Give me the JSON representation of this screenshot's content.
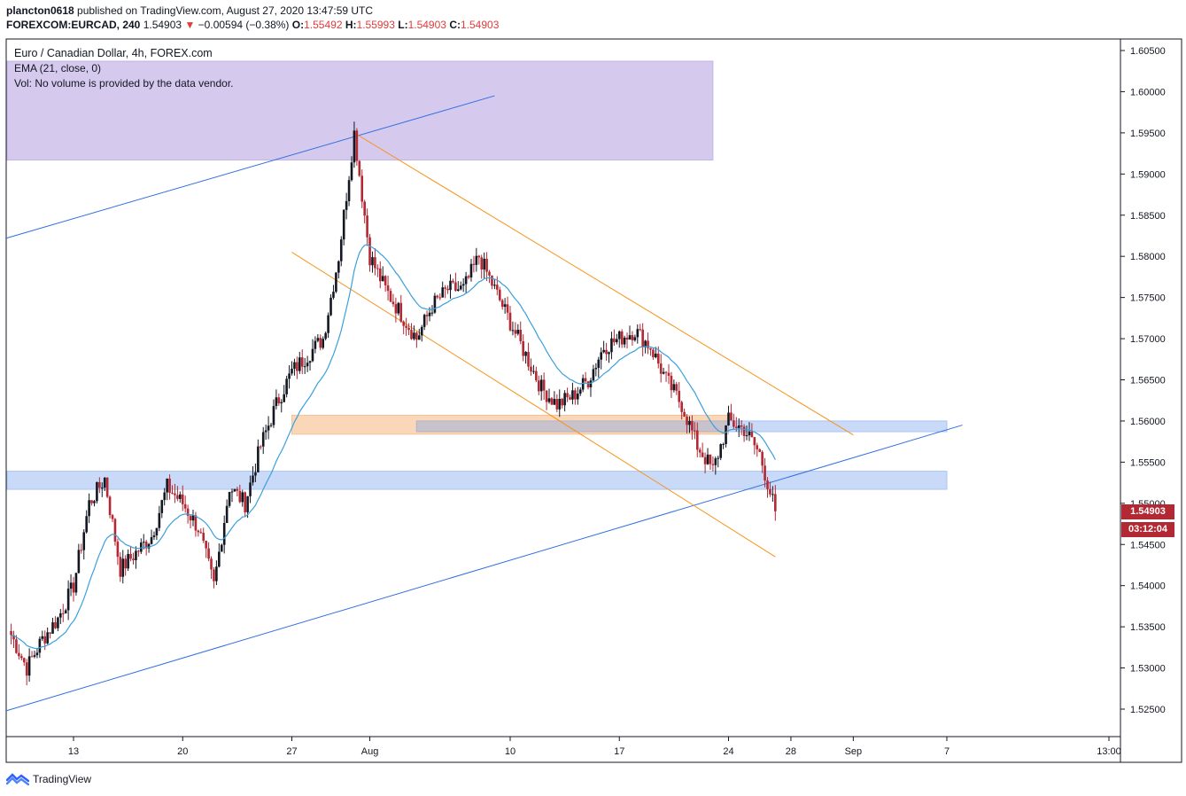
{
  "header": {
    "user": "plancton0618",
    "published": " published on TradingView.com, August 27, 2020 13:47:59 UTC",
    "symbol": "FOREXCOM:EURCAD, 240",
    "last": "1.54903",
    "change_arrow": "▼",
    "change": "−0.00594 (−0.38%)",
    "o_label": "O:",
    "o": "1.55492",
    "h_label": "H:",
    "h": "1.55993",
    "l_label": "L:",
    "l": "1.54903",
    "c_label": "C:",
    "c": "1.54903"
  },
  "legend": {
    "title": "Euro / Canadian Dollar, 4h, FOREX.com",
    "ema": "EMA (21, close, 0)",
    "vol": "Vol: No volume is provided by the data vendor."
  },
  "price_tag": {
    "price": "1.54903",
    "countdown": "03:12:04"
  },
  "brand": {
    "name": "TradingView",
    "icon": "tradingview-logo-icon"
  },
  "colors": {
    "up": "#131722",
    "down": "#b22833",
    "ema": "#3aa0dc",
    "trend_blue": "#2f6fe0",
    "trend_orange": "#f7931a",
    "zone_purple": "#d5c9ee",
    "zone_blue": "#c9daf8",
    "zone_orange": "#f9d7b8"
  },
  "chart_data": {
    "type": "candlestick",
    "title": "Euro / Canadian Dollar, 4h, FOREX.com",
    "y_ticks": [
      "1.60500",
      "1.60000",
      "1.59500",
      "1.59000",
      "1.58500",
      "1.58000",
      "1.57500",
      "1.57000",
      "1.56500",
      "1.56000",
      "1.55500",
      "1.55000",
      "1.54500",
      "1.54000",
      "1.53500",
      "1.53000",
      "1.52500"
    ],
    "x_ticks": [
      "13",
      "20",
      "27",
      "Aug",
      "10",
      "17",
      "24",
      "28",
      "Sep",
      "7",
      "13:00"
    ],
    "ylim": [
      1.5205,
      1.6085
    ],
    "grid": false,
    "close_path": [
      [
        "Jul 9",
        1.534
      ],
      [
        "Jul 10",
        1.53
      ],
      [
        "Jul 11",
        1.5335
      ],
      [
        "Jul 12",
        1.536
      ],
      [
        "Jul 13",
        1.54
      ],
      [
        "Jul 14",
        1.55
      ],
      [
        "Jul 15",
        1.553
      ],
      [
        "Jul 16",
        1.542
      ],
      [
        "Jul 17",
        1.544
      ],
      [
        "Jul 18",
        1.546
      ],
      [
        "Jul 19",
        1.552
      ],
      [
        "Jul 20",
        1.55
      ],
      [
        "Jul 21",
        1.547
      ],
      [
        "Jul 22",
        1.54
      ],
      [
        "Jul 23",
        1.552
      ],
      [
        "Jul 24",
        1.55
      ],
      [
        "Jul 25",
        1.557
      ],
      [
        "Jul 26",
        1.562
      ],
      [
        "Jul 27",
        1.566
      ],
      [
        "Jul 28",
        1.568
      ],
      [
        "Jul 29",
        1.57
      ],
      [
        "Jul 30",
        1.58
      ],
      [
        "Jul 31",
        1.595
      ],
      [
        "Aug 1",
        1.58
      ],
      [
        "Aug 2",
        1.576
      ],
      [
        "Aug 3",
        1.573
      ],
      [
        "Aug 4",
        1.57
      ],
      [
        "Aug 5",
        1.574
      ],
      [
        "Aug 6",
        1.576
      ],
      [
        "Aug 7",
        1.576
      ],
      [
        "Aug 8",
        1.58
      ],
      [
        "Aug 9",
        1.576
      ],
      [
        "Aug 10",
        1.572
      ],
      [
        "Aug 11",
        1.568
      ],
      [
        "Aug 12",
        1.564
      ],
      [
        "Aug 13",
        1.562
      ],
      [
        "Aug 14",
        1.563
      ],
      [
        "Aug 15",
        1.565
      ],
      [
        "Aug 16",
        1.569
      ],
      [
        "Aug 17",
        1.57
      ],
      [
        "Aug 18",
        1.571
      ],
      [
        "Aug 19",
        1.569
      ],
      [
        "Aug 20",
        1.565
      ],
      [
        "Aug 21",
        1.562
      ],
      [
        "Aug 22",
        1.557
      ],
      [
        "Aug 23",
        1.554
      ],
      [
        "Aug 24",
        1.56
      ],
      [
        "Aug 25",
        1.559
      ],
      [
        "Aug 26",
        1.556
      ],
      [
        "Aug 27",
        1.54903
      ]
    ],
    "ema_21": true,
    "zones": [
      {
        "name": "purple-zone",
        "from": "Jul 9",
        "to": "Aug 23",
        "top": 1.6037,
        "bottom": 1.5917
      },
      {
        "name": "orange-zone",
        "from": "Jul 27",
        "to": "Aug 24",
        "top": 1.5607,
        "bottom": 1.5584
      },
      {
        "name": "blue-zone-upper",
        "from": "Aug 4",
        "to": "Sep 7",
        "top": 1.56,
        "bottom": 1.5587
      },
      {
        "name": "grey-zone",
        "from": "Aug 4",
        "to": "Aug 24",
        "top": 1.56,
        "bottom": 1.5587
      },
      {
        "name": "blue-zone-lower",
        "from": "Jul 9",
        "to": "Sep 7",
        "top": 1.5539,
        "bottom": 1.5517
      }
    ],
    "trendlines": [
      {
        "name": "upper-blue-trendline",
        "color": "blue",
        "from": [
          "Jul 9",
          1.5822
        ],
        "to": [
          "Aug 9",
          1.5995
        ]
      },
      {
        "name": "lower-blue-trendline",
        "color": "blue",
        "from": [
          "Jul 9",
          1.5248
        ],
        "to": [
          "Sep 8",
          1.5595
        ]
      },
      {
        "name": "upper-orange-trendline",
        "color": "orange",
        "from": [
          "Jul 31",
          1.595
        ],
        "to": [
          "Sep 1",
          1.5583
        ]
      },
      {
        "name": "lower-orange-trendline",
        "color": "orange",
        "from": [
          "Jul 27",
          1.5805
        ],
        "to": [
          "Aug 27",
          1.5435
        ]
      }
    ]
  }
}
